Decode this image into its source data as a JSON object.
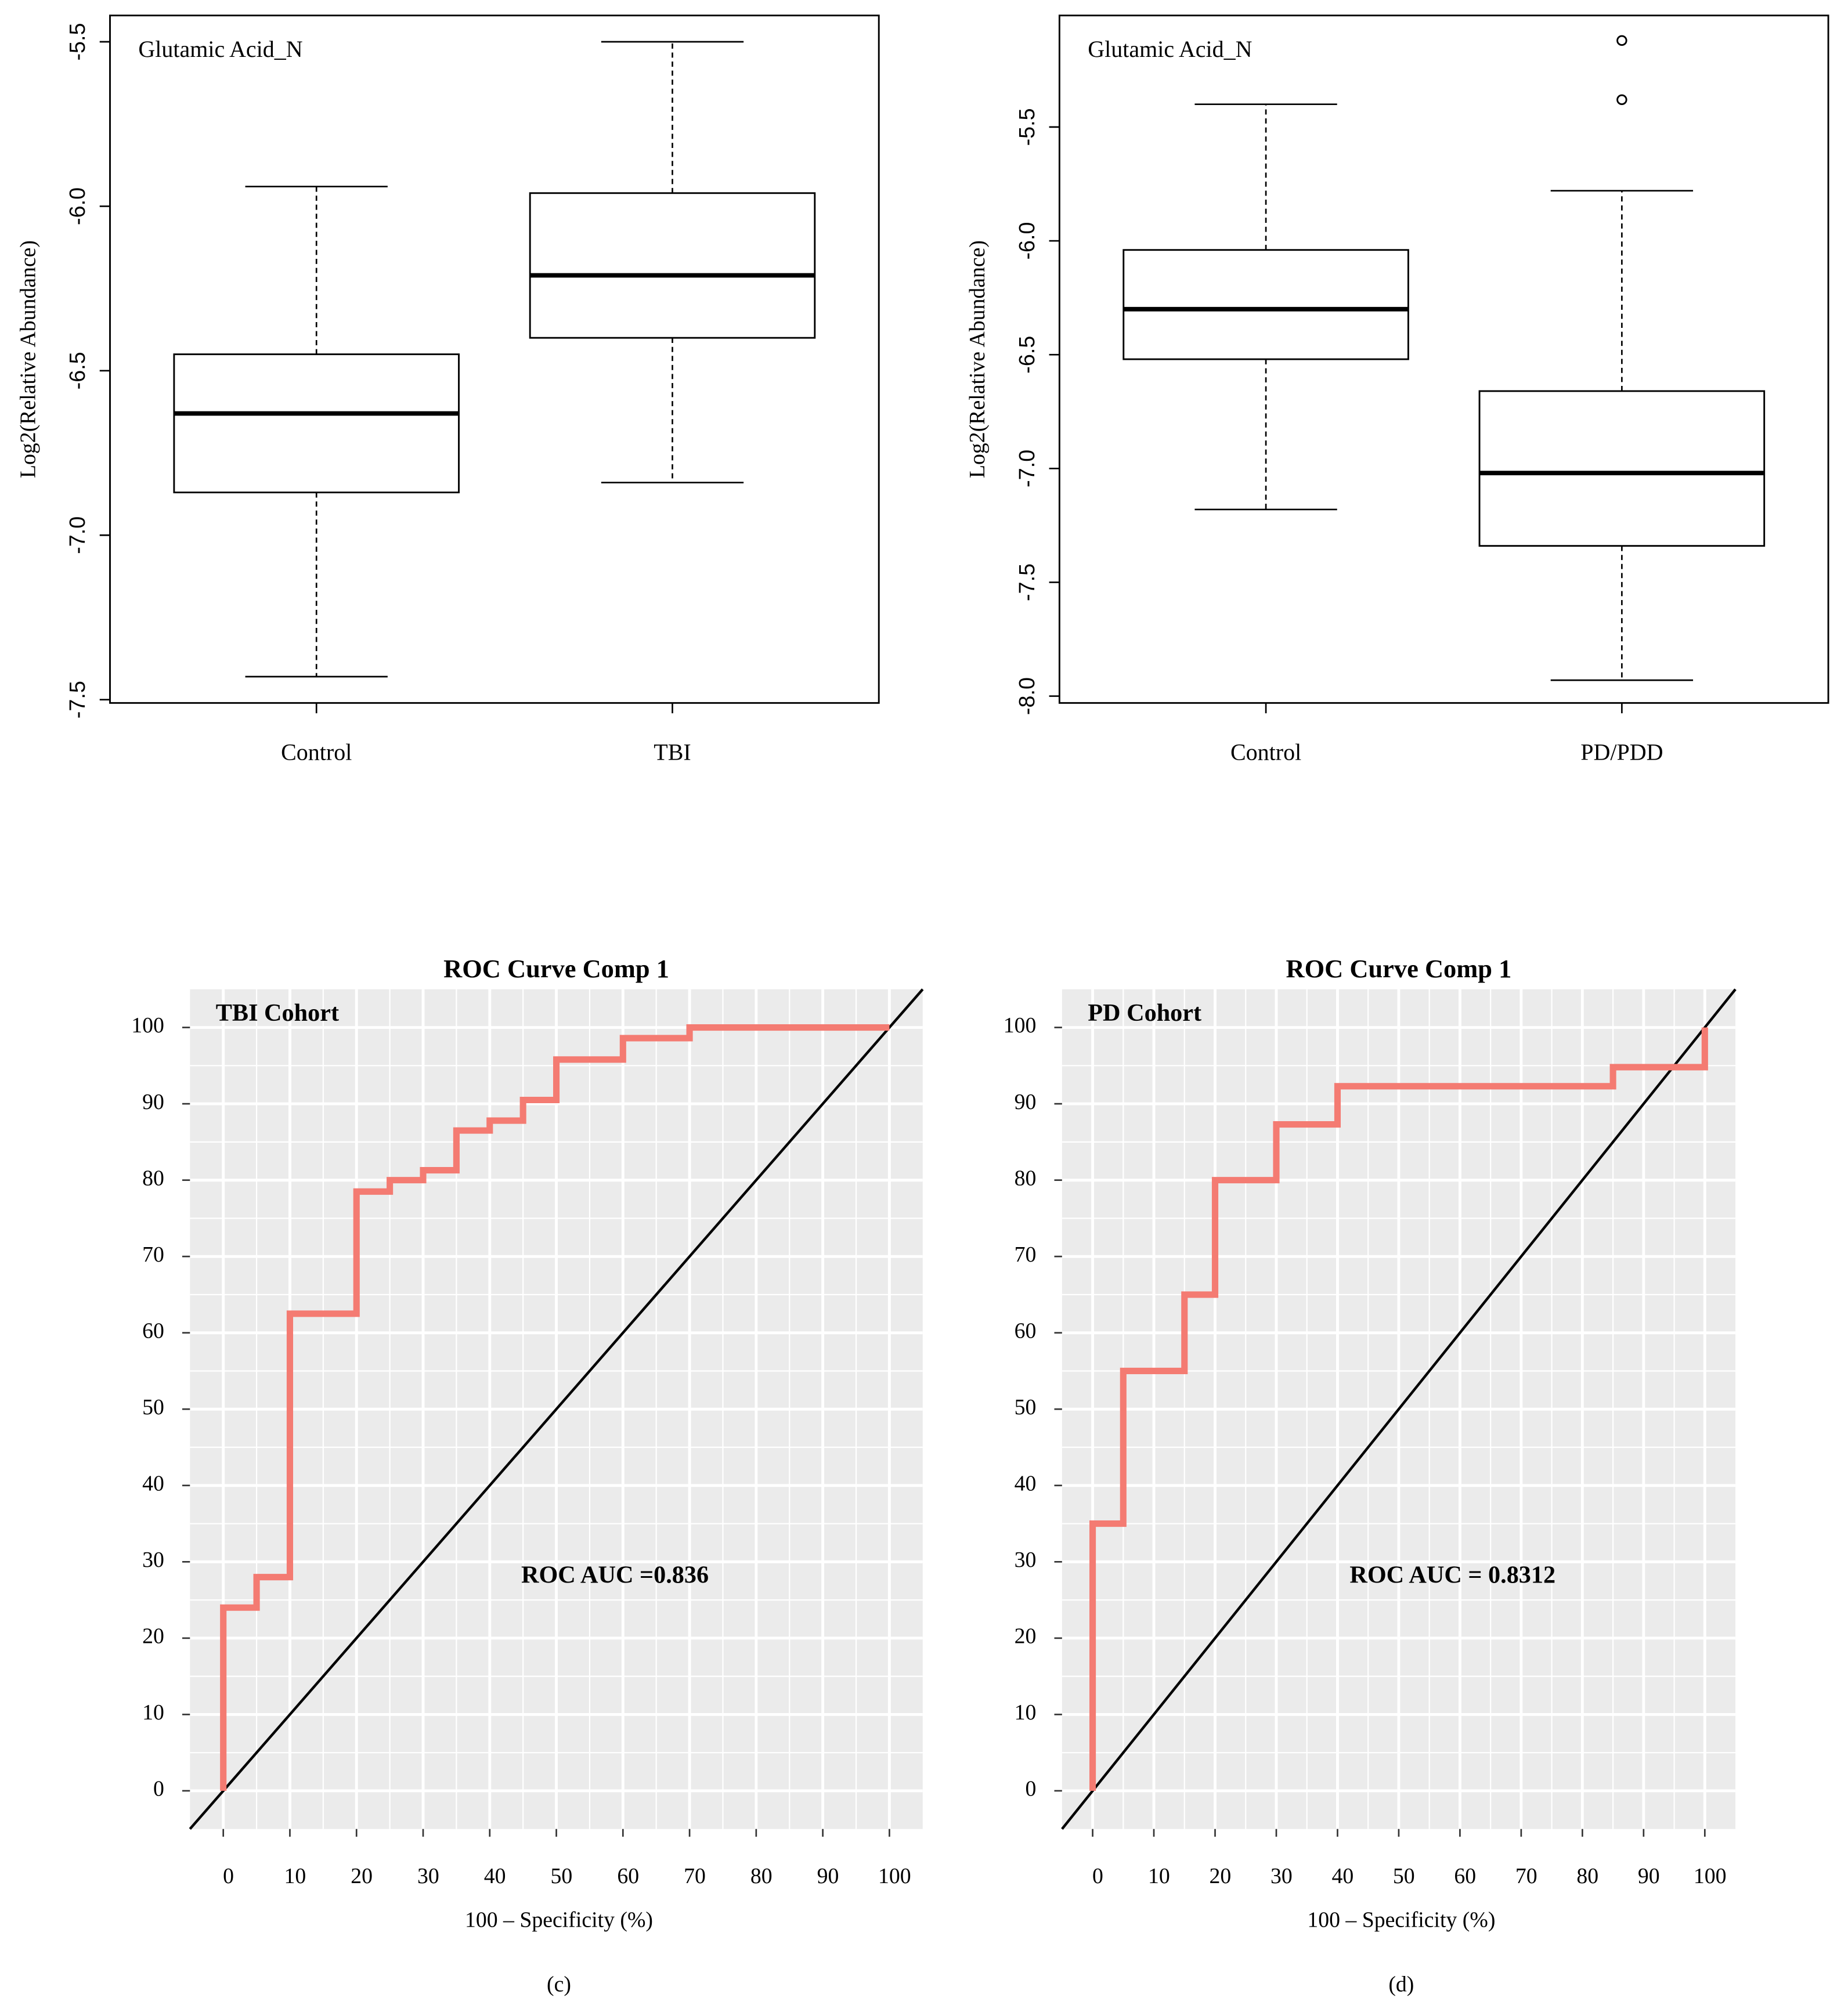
{
  "chart_data": [
    {
      "type": "box",
      "annotation": "Glutamic Acid_N",
      "ylabel": "Log2(Relative Abundance)",
      "categories": [
        "Control",
        "TBI"
      ],
      "boxes": [
        {
          "whisker_low": -7.43,
          "q1": -6.87,
          "median": -6.63,
          "q3": -6.45,
          "whisker_high": -5.94,
          "outliers": []
        },
        {
          "whisker_low": -6.84,
          "q1": -6.4,
          "median": -6.21,
          "q3": -5.96,
          "whisker_high": -5.5,
          "outliers": []
        }
      ],
      "ylim": [
        -7.51,
        -5.42
      ],
      "yticks": [
        {
          "value": -7.5,
          "label": "-7.5"
        },
        {
          "value": -7,
          "label": "-7.0"
        },
        -6.5,
        {
          "value": -6,
          "label": "-6.0"
        },
        -5.5
      ]
    },
    {
      "type": "box",
      "annotation": "Glutamic Acid_N",
      "ylabel": "Log2(Relative Abundance)",
      "categories": [
        "Control",
        "PD/PDD"
      ],
      "boxes": [
        {
          "whisker_low": -7.18,
          "q1": -6.52,
          "median": -6.3,
          "q3": -6.04,
          "whisker_high": -5.4,
          "outliers": []
        },
        {
          "whisker_low": -7.93,
          "q1": -7.34,
          "median": -7.02,
          "q3": -6.66,
          "whisker_high": -5.78,
          "outliers": [
            -5.38,
            -5.12
          ]
        }
      ],
      "ylim": [
        -8.03,
        -5.01
      ],
      "yticks": [
        {
          "value": -8,
          "label": "-8.0"
        },
        -7.5,
        {
          "value": -7,
          "label": "-7.0"
        },
        -6.5,
        {
          "value": -6,
          "label": "-6.0"
        },
        -5.5
      ]
    },
    {
      "type": "line",
      "title": "ROC Curve Comp 1",
      "annotation": "TBI Cohort",
      "auc_label": "ROC AUC =0.836",
      "xlabel": "100 – Specificity (%)",
      "caption": "(c)",
      "diagonal": true,
      "grid": true,
      "series": [
        {
          "color": "#f47b72",
          "x": [
            0,
            0,
            5,
            5,
            10,
            10,
            20,
            20,
            25,
            25,
            30,
            30,
            35,
            35,
            40,
            40,
            45,
            45,
            50,
            50,
            60,
            60,
            70,
            70,
            100
          ],
          "values": [
            0,
            24,
            24,
            28,
            28,
            62.5,
            62.5,
            78.5,
            78.5,
            80,
            80,
            81.3,
            81.3,
            86.5,
            86.5,
            87.8,
            87.8,
            90.5,
            90.5,
            95.8,
            95.8,
            98.6,
            98.6,
            100,
            100
          ]
        }
      ],
      "xlim": [
        -5,
        105
      ],
      "ylim": [
        -5,
        105
      ],
      "xticks": [
        0,
        10,
        20,
        30,
        40,
        50,
        60,
        70,
        80,
        90,
        100
      ],
      "yticks": [
        0,
        10,
        20,
        30,
        40,
        50,
        60,
        70,
        80,
        90,
        100
      ],
      "minor_ticks": [
        5,
        15,
        25,
        35,
        45,
        55,
        65,
        75,
        85,
        95
      ]
    },
    {
      "type": "line",
      "title": "ROC Curve Comp 1",
      "annotation": "PD Cohort",
      "auc_label": "ROC AUC = 0.8312",
      "xlabel": "100 – Specificity (%)",
      "caption": "(d)",
      "diagonal": true,
      "grid": true,
      "series": [
        {
          "color": "#f47b72",
          "x": [
            0,
            0,
            5,
            5,
            15,
            15,
            20,
            20,
            30,
            30,
            40,
            40,
            85,
            85,
            100,
            100
          ],
          "values": [
            0,
            35,
            35,
            55,
            55,
            65,
            65,
            80,
            80,
            87.3,
            87.3,
            92.3,
            92.3,
            94.8,
            94.8,
            100
          ]
        }
      ],
      "xlim": [
        -5,
        105
      ],
      "ylim": [
        -5,
        105
      ],
      "xticks": [
        0,
        10,
        20,
        30,
        40,
        50,
        60,
        70,
        80,
        90,
        100
      ],
      "yticks": [
        0,
        10,
        20,
        30,
        40,
        50,
        60,
        70,
        80,
        90,
        100
      ],
      "minor_ticks": [
        5,
        15,
        25,
        35,
        45,
        55,
        65,
        75,
        85,
        95
      ]
    }
  ]
}
